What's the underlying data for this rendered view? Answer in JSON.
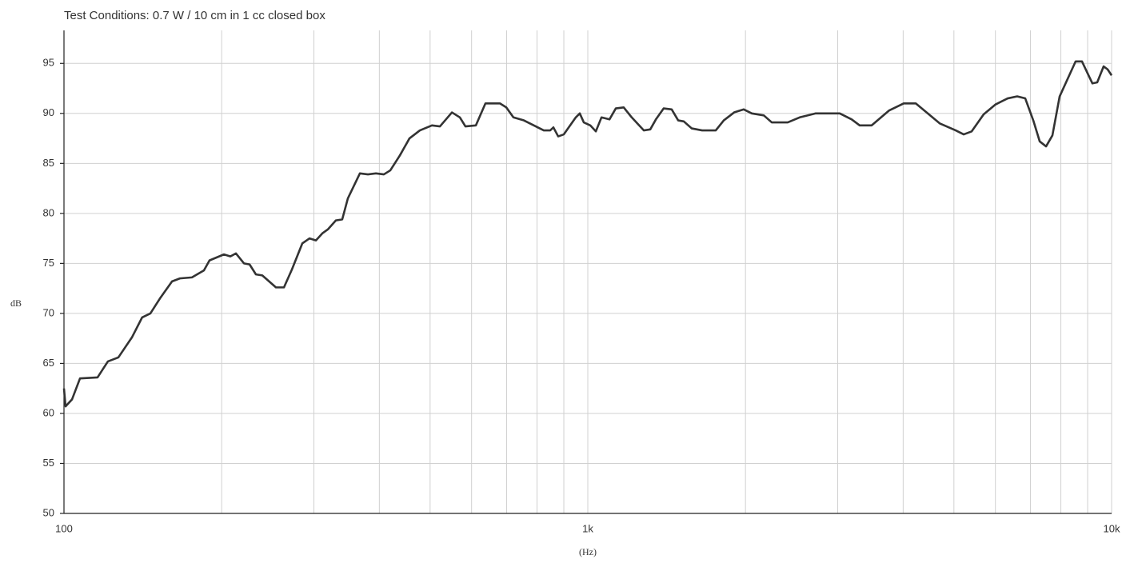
{
  "chart_data": {
    "type": "line",
    "title": "Test Conditions: 0.7 W / 10 cm in 1 cc closed box",
    "x_label": "(Hz)",
    "y_label": "dB",
    "xscale": "log",
    "grid": true,
    "xlim": [
      100,
      10000
    ],
    "ylim": [
      50,
      98.3
    ],
    "xticks": [
      100,
      {
        "value": 1000,
        "label": "1k"
      },
      {
        "value": 10000,
        "label": "10k"
      }
    ],
    "xminor": [
      200,
      300,
      400,
      500,
      600,
      700,
      800,
      900,
      2000,
      3000,
      4000,
      5000,
      6000,
      7000,
      8000,
      9000
    ],
    "yticks": [
      50,
      55,
      60,
      65,
      70,
      75,
      80,
      85,
      90,
      95
    ],
    "series": [
      {
        "color": "#333333",
        "x": [
          100,
          100.7,
          103.6,
          107.3,
          115.9,
          121.3,
          127,
          134.8,
          141,
          146.2,
          152.5,
          160.8,
          166.5,
          175.5,
          185,
          189.6,
          202,
          207.8,
          212.9,
          220.6,
          226.1,
          232.5,
          239.1,
          253.9,
          263,
          272.4,
          285.1,
          294.3,
          302.7,
          311.3,
          319,
          330.4,
          339.8,
          348.3,
          367.2,
          380.4,
          394,
          408,
          419.7,
          437.8,
          456.6,
          478,
          504.1,
          522.1,
          550.4,
          569.9,
          584,
          611.4,
          637.7,
          679.4,
          698.8,
          721.1,
          755,
          782,
          824.1,
          847.6,
          859.7,
          878,
          900,
          948.6,
          965.4,
          982.6,
          1011,
          1036,
          1062,
          1100,
          1131,
          1171,
          1213,
          1279,
          1316,
          1349,
          1396,
          1446,
          1488,
          1525,
          1579,
          1653,
          1755,
          1818,
          1903,
          1985,
          2056,
          2168,
          2245,
          2408,
          2538,
          2723,
          3027,
          3190,
          3304,
          3483,
          3763,
          4010,
          4227,
          4456,
          4697,
          5040,
          5220,
          5406,
          5698,
          6006,
          6331,
          6604,
          6841,
          7087,
          7290,
          7497,
          7709,
          7958,
          8537,
          8779,
          9000,
          9191,
          9387,
          9655,
          9826,
          10000
        ],
        "values": [
          62.5,
          60.7,
          61.4,
          63.5,
          63.6,
          65.2,
          65.6,
          67.6,
          69.6,
          70.0,
          71.5,
          73.2,
          73.5,
          73.6,
          74.3,
          75.3,
          75.9,
          75.7,
          76.0,
          75.0,
          74.9,
          73.9,
          73.8,
          72.6,
          72.6,
          74.4,
          77.0,
          77.5,
          77.3,
          78.0,
          78.4,
          79.3,
          79.4,
          81.5,
          84.0,
          83.9,
          84.0,
          83.9,
          84.3,
          85.8,
          87.5,
          88.3,
          88.8,
          88.7,
          90.1,
          89.6,
          88.7,
          88.8,
          91.0,
          91.0,
          90.6,
          89.6,
          89.3,
          88.9,
          88.3,
          88.3,
          88.6,
          87.7,
          87.9,
          89.6,
          90.0,
          89.1,
          88.8,
          88.2,
          89.6,
          89.4,
          90.5,
          90.6,
          89.6,
          88.3,
          88.4,
          89.4,
          90.5,
          90.4,
          89.3,
          89.2,
          88.5,
          88.3,
          88.3,
          89.3,
          90.1,
          90.4,
          90.0,
          89.8,
          89.1,
          89.1,
          89.6,
          90.0,
          90.0,
          89.4,
          88.8,
          88.8,
          90.3,
          91.0,
          91.0,
          90.0,
          89.0,
          88.3,
          87.9,
          88.2,
          89.9,
          90.9,
          91.5,
          91.7,
          91.5,
          89.3,
          87.2,
          86.7,
          87.8,
          91.7,
          95.2,
          95.2,
          94.0,
          93.0,
          93.1,
          94.7,
          94.4,
          93.8
        ]
      }
    ]
  }
}
